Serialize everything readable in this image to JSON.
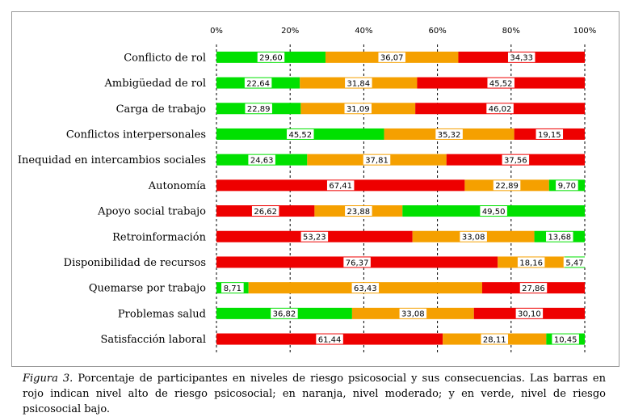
{
  "chart_data": {
    "type": "bar",
    "orientation": "horizontal",
    "stacked": true,
    "xlim": [
      0,
      100
    ],
    "x_ticks": [
      "0%",
      "20%",
      "40%",
      "60%",
      "80%",
      "100%"
    ],
    "grid": true,
    "categories": [
      "Conflicto de rol",
      "Ambigüedad de rol",
      "Carga de trabajo",
      "Conflictos interpersonales",
      "Inequidad en intercambios sociales",
      "Autonomía",
      "Apoyo social trabajo",
      "Retroinformación",
      "Disponibilidad de recursos",
      "Quemarse por trabajo",
      "Problemas salud",
      "Satisfacción laboral"
    ],
    "bars": [
      {
        "segments": [
          {
            "color": "green",
            "value": 29.6,
            "label": "29,60"
          },
          {
            "color": "orange",
            "value": 36.07,
            "label": "36,07"
          },
          {
            "color": "red",
            "value": 34.33,
            "label": "34,33"
          }
        ]
      },
      {
        "segments": [
          {
            "color": "green",
            "value": 22.64,
            "label": "22,64"
          },
          {
            "color": "orange",
            "value": 31.84,
            "label": "31,84"
          },
          {
            "color": "red",
            "value": 45.52,
            "label": "45,52"
          }
        ]
      },
      {
        "segments": [
          {
            "color": "green",
            "value": 22.89,
            "label": "22,89"
          },
          {
            "color": "orange",
            "value": 31.09,
            "label": "31,09"
          },
          {
            "color": "red",
            "value": 46.02,
            "label": "46,02"
          }
        ]
      },
      {
        "segments": [
          {
            "color": "green",
            "value": 45.52,
            "label": "45,52"
          },
          {
            "color": "orange",
            "value": 35.32,
            "label": "35,32"
          },
          {
            "color": "red",
            "value": 19.15,
            "label": "19,15"
          }
        ]
      },
      {
        "segments": [
          {
            "color": "green",
            "value": 24.63,
            "label": "24,63"
          },
          {
            "color": "orange",
            "value": 37.81,
            "label": "37,81"
          },
          {
            "color": "red",
            "value": 37.56,
            "label": "37,56"
          }
        ]
      },
      {
        "segments": [
          {
            "color": "red",
            "value": 67.41,
            "label": "67,41"
          },
          {
            "color": "orange",
            "value": 22.89,
            "label": "22,89"
          },
          {
            "color": "green",
            "value": 9.7,
            "label": "9,70"
          }
        ]
      },
      {
        "segments": [
          {
            "color": "red",
            "value": 26.62,
            "label": "26,62"
          },
          {
            "color": "orange",
            "value": 23.88,
            "label": "23,88"
          },
          {
            "color": "green",
            "value": 49.5,
            "label": "49,50"
          }
        ]
      },
      {
        "segments": [
          {
            "color": "red",
            "value": 53.23,
            "label": "53,23"
          },
          {
            "color": "orange",
            "value": 33.08,
            "label": "33,08"
          },
          {
            "color": "green",
            "value": 13.68,
            "label": "13,68"
          }
        ]
      },
      {
        "segments": [
          {
            "color": "red",
            "value": 76.37,
            "label": "76,37"
          },
          {
            "color": "orange",
            "value": 18.16,
            "label": "18,16"
          },
          {
            "color": "green",
            "value": 5.47,
            "label": "5,47"
          }
        ]
      },
      {
        "segments": [
          {
            "color": "green",
            "value": 8.71,
            "label": "8,71"
          },
          {
            "color": "orange",
            "value": 63.43,
            "label": "63,43"
          },
          {
            "color": "red",
            "value": 27.86,
            "label": "27,86"
          }
        ]
      },
      {
        "segments": [
          {
            "color": "green",
            "value": 36.82,
            "label": "36,82"
          },
          {
            "color": "orange",
            "value": 33.08,
            "label": "33,08"
          },
          {
            "color": "red",
            "value": 30.1,
            "label": "30,10"
          }
        ]
      },
      {
        "segments": [
          {
            "color": "red",
            "value": 61.44,
            "label": "61,44"
          },
          {
            "color": "orange",
            "value": 28.11,
            "label": "28,11"
          },
          {
            "color": "green",
            "value": 10.45,
            "label": "10,45"
          }
        ]
      }
    ],
    "colors": {
      "green": "#00e000",
      "orange": "#f5a000",
      "red": "#ee0000"
    }
  },
  "caption": {
    "figure_label": "Figura 3.",
    "text": " Porcentaje de participantes en niveles de riesgo psicosocial y sus consecuencias. Las barras en rojo indican nivel alto de riesgo psicosocial; en naranja, nivel moderado; y en verde, nivel de riesgo psicosocial bajo."
  }
}
